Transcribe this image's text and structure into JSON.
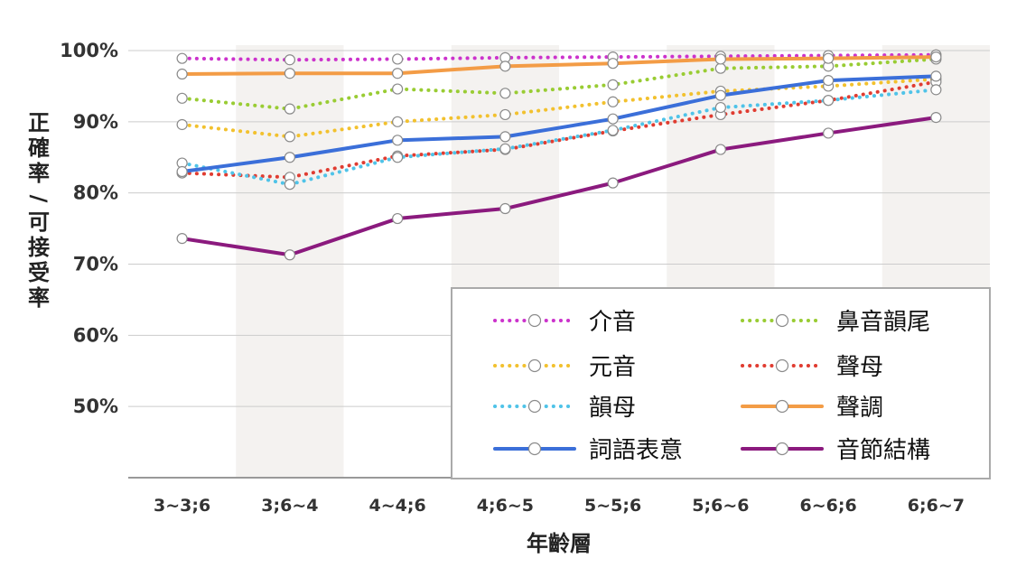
{
  "chart_data": {
    "type": "line",
    "title": "",
    "xlabel": "年齡層",
    "ylabel": "正確率/可接受率",
    "categories": [
      "3~3;6",
      "3;6~4",
      "4~4;6",
      "4;6~5",
      "5~5;6",
      "5;6~6",
      "6~6;6",
      "6;6~7"
    ],
    "yticks": [
      "50%",
      "60%",
      "70%",
      "80%",
      "90%",
      "100%"
    ],
    "ylim": [
      40,
      100
    ],
    "grid": true,
    "legend_position": "bottom-right",
    "series": [
      {
        "name": "介音",
        "style": "dotted",
        "color": "#cc33cc",
        "values": [
          98.9,
          98.7,
          98.8,
          99.0,
          99.1,
          99.2,
          99.3,
          99.4
        ]
      },
      {
        "name": "鼻音韻尾",
        "style": "dotted",
        "color": "#99cc33",
        "values": [
          93.3,
          91.8,
          94.6,
          94.0,
          95.2,
          97.5,
          97.8,
          98.8
        ]
      },
      {
        "name": "元音",
        "style": "dotted",
        "color": "#f2c12e",
        "values": [
          89.6,
          87.9,
          90.0,
          91.0,
          92.8,
          94.3,
          95.0,
          96.0
        ]
      },
      {
        "name": "聲母",
        "style": "dotted",
        "color": "#e03c31",
        "values": [
          82.8,
          82.2,
          85.2,
          86.1,
          88.7,
          91.0,
          93.0,
          95.6
        ]
      },
      {
        "name": "韻母",
        "style": "dotted",
        "color": "#4fc3e8",
        "values": [
          84.2,
          81.2,
          85.0,
          86.2,
          88.8,
          92.0,
          93.0,
          94.5
        ]
      },
      {
        "name": "聲調",
        "style": "solid",
        "color": "#f39c46",
        "values": [
          96.7,
          96.8,
          96.8,
          97.8,
          98.2,
          98.8,
          98.9,
          99.1
        ]
      },
      {
        "name": "詞語表意",
        "style": "solid",
        "color": "#3b6fd9",
        "values": [
          83.0,
          85.0,
          87.4,
          87.9,
          90.4,
          93.7,
          95.8,
          96.4
        ]
      },
      {
        "name": "音節結構",
        "style": "solid",
        "color": "#8b1a7e",
        "values": [
          73.6,
          71.3,
          76.4,
          77.8,
          81.4,
          86.1,
          88.4,
          90.6
        ]
      }
    ]
  },
  "legend_order": [
    "介音",
    "鼻音韻尾",
    "元音",
    "聲母",
    "韻母",
    "聲調",
    "詞語表意",
    "音節結構"
  ],
  "colors": {
    "band": "#f4f2f0",
    "grid": "#cccccc",
    "axis": "#999999",
    "legend_border": "#aaaaaa"
  }
}
